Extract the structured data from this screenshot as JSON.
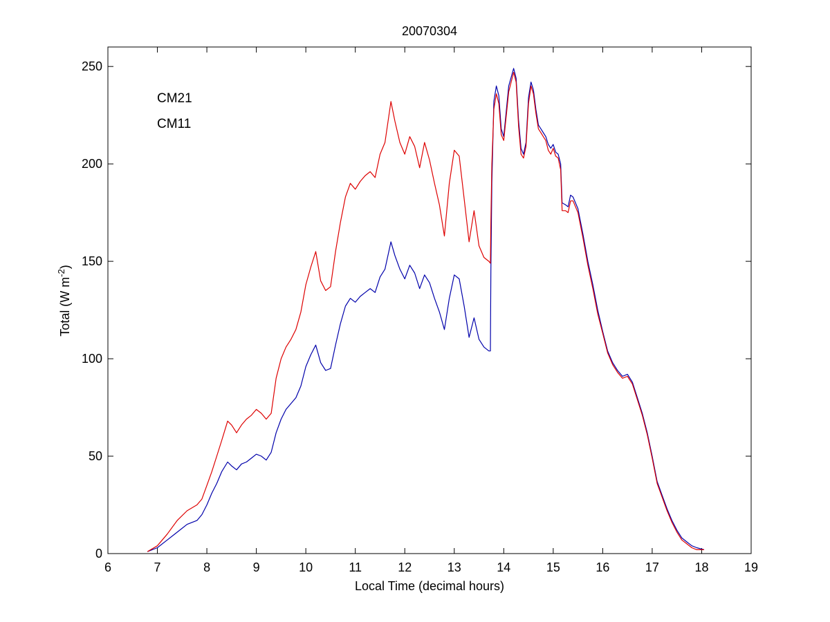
{
  "chart_data": {
    "type": "line",
    "title": "20070304",
    "xlabel": "Local Time (decimal hours)",
    "ylabel_main": "Total (W m",
    "ylabel_sup": "-2",
    "ylabel_close": ")",
    "xlim": [
      6,
      19
    ],
    "ylim": [
      0,
      260
    ],
    "xticks": [
      6,
      7,
      8,
      9,
      10,
      11,
      12,
      13,
      14,
      15,
      16,
      17,
      18,
      19
    ],
    "yticks": [
      0,
      50,
      100,
      150,
      200,
      250
    ],
    "grid": false,
    "legend_position": "top-left",
    "series": [
      {
        "name": "CM21",
        "color": "#0000aa",
        "points": [
          [
            6.8,
            1
          ],
          [
            7.0,
            3
          ],
          [
            7.2,
            7
          ],
          [
            7.4,
            11
          ],
          [
            7.6,
            15
          ],
          [
            7.8,
            17
          ],
          [
            7.9,
            20
          ],
          [
            8.0,
            25
          ],
          [
            8.1,
            31
          ],
          [
            8.2,
            36
          ],
          [
            8.3,
            42
          ],
          [
            8.42,
            47
          ],
          [
            8.5,
            45
          ],
          [
            8.6,
            43
          ],
          [
            8.7,
            46
          ],
          [
            8.8,
            47
          ],
          [
            8.9,
            49
          ],
          [
            9.0,
            51
          ],
          [
            9.1,
            50
          ],
          [
            9.2,
            48
          ],
          [
            9.3,
            52
          ],
          [
            9.4,
            62
          ],
          [
            9.5,
            69
          ],
          [
            9.6,
            74
          ],
          [
            9.7,
            77
          ],
          [
            9.8,
            80
          ],
          [
            9.9,
            86
          ],
          [
            10.0,
            96
          ],
          [
            10.1,
            102
          ],
          [
            10.2,
            107
          ],
          [
            10.3,
            98
          ],
          [
            10.4,
            94
          ],
          [
            10.5,
            95
          ],
          [
            10.6,
            107
          ],
          [
            10.7,
            118
          ],
          [
            10.8,
            127
          ],
          [
            10.9,
            131
          ],
          [
            11.0,
            129
          ],
          [
            11.1,
            132
          ],
          [
            11.2,
            134
          ],
          [
            11.3,
            136
          ],
          [
            11.4,
            134
          ],
          [
            11.5,
            142
          ],
          [
            11.6,
            146
          ],
          [
            11.72,
            160
          ],
          [
            11.8,
            153
          ],
          [
            11.9,
            146
          ],
          [
            12.0,
            141
          ],
          [
            12.1,
            148
          ],
          [
            12.2,
            144
          ],
          [
            12.3,
            136
          ],
          [
            12.4,
            143
          ],
          [
            12.5,
            139
          ],
          [
            12.6,
            131
          ],
          [
            12.7,
            124
          ],
          [
            12.8,
            115
          ],
          [
            12.9,
            131
          ],
          [
            13.0,
            143
          ],
          [
            13.1,
            141
          ],
          [
            13.2,
            127
          ],
          [
            13.3,
            111
          ],
          [
            13.4,
            121
          ],
          [
            13.5,
            110
          ],
          [
            13.6,
            106
          ],
          [
            13.7,
            104
          ],
          [
            13.73,
            104
          ],
          [
            13.74,
            145
          ],
          [
            13.76,
            190
          ],
          [
            13.8,
            232
          ],
          [
            13.85,
            240
          ],
          [
            13.9,
            235
          ],
          [
            13.95,
            218
          ],
          [
            14.0,
            214
          ],
          [
            14.1,
            240
          ],
          [
            14.2,
            249
          ],
          [
            14.25,
            244
          ],
          [
            14.3,
            222
          ],
          [
            14.35,
            208
          ],
          [
            14.4,
            205
          ],
          [
            14.45,
            211
          ],
          [
            14.5,
            234
          ],
          [
            14.55,
            242
          ],
          [
            14.6,
            238
          ],
          [
            14.65,
            228
          ],
          [
            14.7,
            220
          ],
          [
            14.75,
            218
          ],
          [
            14.8,
            216
          ],
          [
            14.85,
            214
          ],
          [
            14.9,
            210
          ],
          [
            14.95,
            208
          ],
          [
            15.0,
            210
          ],
          [
            15.05,
            206
          ],
          [
            15.1,
            205
          ],
          [
            15.15,
            200
          ],
          [
            15.18,
            180
          ],
          [
            15.25,
            179
          ],
          [
            15.3,
            178
          ],
          [
            15.35,
            184
          ],
          [
            15.4,
            183
          ],
          [
            15.5,
            177
          ],
          [
            15.6,
            164
          ],
          [
            15.7,
            150
          ],
          [
            15.8,
            138
          ],
          [
            15.9,
            125
          ],
          [
            16.0,
            114
          ],
          [
            16.1,
            104
          ],
          [
            16.2,
            98
          ],
          [
            16.3,
            94
          ],
          [
            16.4,
            91
          ],
          [
            16.5,
            92
          ],
          [
            16.6,
            88
          ],
          [
            16.7,
            80
          ],
          [
            16.8,
            72
          ],
          [
            16.9,
            62
          ],
          [
            17.0,
            50
          ],
          [
            17.1,
            37
          ],
          [
            17.2,
            30
          ],
          [
            17.3,
            23
          ],
          [
            17.4,
            17
          ],
          [
            17.5,
            12
          ],
          [
            17.6,
            8
          ],
          [
            17.7,
            6
          ],
          [
            17.8,
            4
          ],
          [
            17.9,
            3
          ],
          [
            18.05,
            2
          ]
        ]
      },
      {
        "name": "CM11",
        "color": "#dd0000",
        "points": [
          [
            6.8,
            1
          ],
          [
            7.0,
            4
          ],
          [
            7.2,
            10
          ],
          [
            7.4,
            17
          ],
          [
            7.6,
            22
          ],
          [
            7.8,
            25
          ],
          [
            7.9,
            28
          ],
          [
            8.0,
            35
          ],
          [
            8.1,
            42
          ],
          [
            8.2,
            50
          ],
          [
            8.3,
            58
          ],
          [
            8.42,
            68
          ],
          [
            8.5,
            66
          ],
          [
            8.6,
            62
          ],
          [
            8.7,
            66
          ],
          [
            8.8,
            69
          ],
          [
            8.9,
            71
          ],
          [
            9.0,
            74
          ],
          [
            9.1,
            72
          ],
          [
            9.2,
            69
          ],
          [
            9.3,
            72
          ],
          [
            9.4,
            90
          ],
          [
            9.5,
            100
          ],
          [
            9.6,
            106
          ],
          [
            9.7,
            110
          ],
          [
            9.8,
            115
          ],
          [
            9.9,
            124
          ],
          [
            10.0,
            138
          ],
          [
            10.1,
            147
          ],
          [
            10.2,
            155
          ],
          [
            10.3,
            140
          ],
          [
            10.4,
            135
          ],
          [
            10.5,
            137
          ],
          [
            10.6,
            155
          ],
          [
            10.7,
            170
          ],
          [
            10.8,
            183
          ],
          [
            10.9,
            190
          ],
          [
            11.0,
            187
          ],
          [
            11.1,
            191
          ],
          [
            11.2,
            194
          ],
          [
            11.3,
            196
          ],
          [
            11.4,
            193
          ],
          [
            11.5,
            205
          ],
          [
            11.6,
            211
          ],
          [
            11.72,
            232
          ],
          [
            11.8,
            222
          ],
          [
            11.9,
            211
          ],
          [
            12.0,
            205
          ],
          [
            12.1,
            214
          ],
          [
            12.2,
            209
          ],
          [
            12.3,
            198
          ],
          [
            12.4,
            211
          ],
          [
            12.5,
            202
          ],
          [
            12.6,
            190
          ],
          [
            12.7,
            179
          ],
          [
            12.8,
            163
          ],
          [
            12.9,
            190
          ],
          [
            13.0,
            207
          ],
          [
            13.1,
            204
          ],
          [
            13.2,
            182
          ],
          [
            13.3,
            160
          ],
          [
            13.4,
            176
          ],
          [
            13.5,
            158
          ],
          [
            13.6,
            152
          ],
          [
            13.7,
            150
          ],
          [
            13.73,
            149
          ],
          [
            13.74,
            170
          ],
          [
            13.76,
            200
          ],
          [
            13.8,
            228
          ],
          [
            13.85,
            236
          ],
          [
            13.9,
            231
          ],
          [
            13.95,
            215
          ],
          [
            14.0,
            212
          ],
          [
            14.1,
            237
          ],
          [
            14.2,
            247
          ],
          [
            14.25,
            242
          ],
          [
            14.3,
            219
          ],
          [
            14.35,
            205
          ],
          [
            14.4,
            203
          ],
          [
            14.45,
            209
          ],
          [
            14.5,
            231
          ],
          [
            14.55,
            240
          ],
          [
            14.6,
            236
          ],
          [
            14.65,
            226
          ],
          [
            14.7,
            218
          ],
          [
            14.75,
            216
          ],
          [
            14.8,
            214
          ],
          [
            14.85,
            212
          ],
          [
            14.9,
            207
          ],
          [
            14.95,
            205
          ],
          [
            15.0,
            208
          ],
          [
            15.05,
            204
          ],
          [
            15.1,
            203
          ],
          [
            15.15,
            197
          ],
          [
            15.18,
            176
          ],
          [
            15.25,
            176
          ],
          [
            15.3,
            175
          ],
          [
            15.35,
            181
          ],
          [
            15.4,
            181
          ],
          [
            15.5,
            175
          ],
          [
            15.6,
            162
          ],
          [
            15.7,
            148
          ],
          [
            15.8,
            136
          ],
          [
            15.9,
            123
          ],
          [
            16.0,
            113
          ],
          [
            16.1,
            103
          ],
          [
            16.2,
            97
          ],
          [
            16.3,
            93
          ],
          [
            16.4,
            90
          ],
          [
            16.5,
            91
          ],
          [
            16.6,
            87
          ],
          [
            16.7,
            79
          ],
          [
            16.8,
            71
          ],
          [
            16.9,
            61
          ],
          [
            17.0,
            49
          ],
          [
            17.1,
            36
          ],
          [
            17.2,
            29
          ],
          [
            17.3,
            22
          ],
          [
            17.4,
            16
          ],
          [
            17.5,
            11
          ],
          [
            17.6,
            7
          ],
          [
            17.7,
            5
          ],
          [
            17.8,
            3
          ],
          [
            17.9,
            2
          ],
          [
            18.05,
            2
          ]
        ]
      }
    ]
  }
}
